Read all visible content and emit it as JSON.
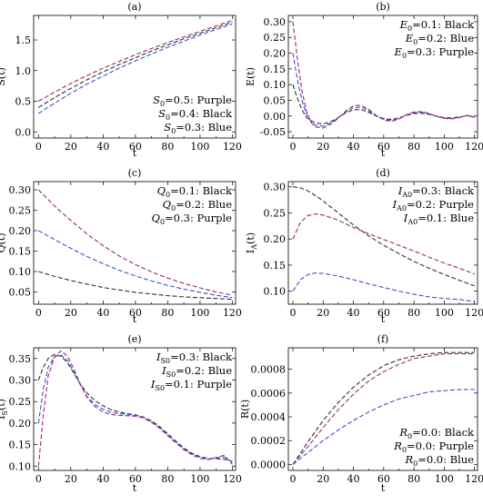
{
  "colors": {
    "Purple": "#9b2a6e",
    "Black": "#333333",
    "Blue": "#3b4fd6"
  },
  "chart_data": [
    {
      "type": "line",
      "title": "(a)",
      "xlabel": "t",
      "ylabel": "S(t)",
      "xlim": [
        -3,
        122
      ],
      "ylim": [
        -0.1,
        1.9
      ],
      "xticks": [
        0,
        20,
        40,
        60,
        80,
        100,
        120
      ],
      "xtick_labels": [
        "0",
        "20",
        "40",
        "60",
        "80",
        "100",
        "120"
      ],
      "yticks": [
        0.0,
        0.5,
        1.0,
        1.5
      ],
      "ytick_labels": [
        "0.0",
        "0.5",
        "1.0",
        "1.5"
      ],
      "legend_position": "bottom-right",
      "legend": [
        {
          "sym": "S",
          "sub": "0",
          "text": "=0.5:  Purple"
        },
        {
          "sym": "S",
          "sub": "0",
          "text": "=0.4:  Black"
        },
        {
          "sym": "S",
          "sub": "0",
          "text": "=0.3:  Blue"
        }
      ],
      "x": [
        0,
        10,
        20,
        30,
        40,
        50,
        60,
        70,
        80,
        90,
        100,
        110,
        120
      ],
      "series": [
        {
          "color": "Purple",
          "values": [
            0.5,
            0.65,
            0.79,
            0.92,
            1.04,
            1.15,
            1.26,
            1.36,
            1.46,
            1.55,
            1.64,
            1.73,
            1.82
          ]
        },
        {
          "color": "Black",
          "values": [
            0.4,
            0.56,
            0.71,
            0.85,
            0.98,
            1.1,
            1.21,
            1.32,
            1.42,
            1.52,
            1.61,
            1.7,
            1.79
          ]
        },
        {
          "color": "Blue",
          "values": [
            0.3,
            0.47,
            0.63,
            0.78,
            0.91,
            1.04,
            1.16,
            1.27,
            1.38,
            1.48,
            1.58,
            1.67,
            1.76
          ]
        }
      ]
    },
    {
      "type": "line",
      "title": "(b)",
      "xlabel": "t",
      "ylabel": "E(t)",
      "xlim": [
        -3,
        122
      ],
      "ylim": [
        -0.07,
        0.32
      ],
      "xticks": [
        0,
        20,
        40,
        60,
        80,
        100,
        120
      ],
      "xtick_labels": [
        "0",
        "20",
        "40",
        "60",
        "80",
        "100",
        "120"
      ],
      "yticks": [
        -0.05,
        0.0,
        0.05,
        0.1,
        0.15,
        0.2,
        0.25,
        0.3
      ],
      "ytick_labels": [
        "-0.05",
        "0.00",
        "0.05",
        "0.10",
        "0.15",
        "0.20",
        "0.25",
        "0.30"
      ],
      "legend_position": "top-right",
      "legend": [
        {
          "sym": "E",
          "sub": "0",
          "text": "=0.1:  Black"
        },
        {
          "sym": "E",
          "sub": "0",
          "text": "=0.2:  Blue"
        },
        {
          "sym": "E",
          "sub": "0",
          "text": "=0.3:  Purple"
        }
      ],
      "x": [
        0,
        3,
        6,
        9,
        12,
        15,
        20,
        25,
        30,
        35,
        40,
        45,
        50,
        55,
        60,
        65,
        70,
        75,
        80,
        85,
        90,
        95,
        100,
        105,
        110,
        115,
        120
      ],
      "series": [
        {
          "color": "Black",
          "values": [
            0.1,
            0.055,
            0.02,
            -0.005,
            -0.015,
            -0.022,
            -0.025,
            -0.018,
            -0.005,
            0.01,
            0.02,
            0.02,
            0.012,
            0.0,
            -0.008,
            -0.011,
            -0.006,
            0.002,
            0.008,
            0.009,
            0.005,
            -0.001,
            -0.005,
            -0.006,
            -0.003,
            0.001,
            -0.002
          ]
        },
        {
          "color": "Blue",
          "values": [
            0.2,
            0.115,
            0.05,
            0.005,
            -0.018,
            -0.03,
            -0.032,
            -0.022,
            -0.006,
            0.013,
            0.027,
            0.028,
            0.017,
            0.001,
            -0.01,
            -0.014,
            -0.008,
            0.003,
            0.011,
            0.012,
            0.007,
            -0.001,
            -0.007,
            -0.008,
            -0.004,
            0.002,
            -0.003
          ]
        },
        {
          "color": "Purple",
          "values": [
            0.3,
            0.18,
            0.08,
            0.015,
            -0.02,
            -0.035,
            -0.038,
            -0.026,
            -0.007,
            0.016,
            0.033,
            0.034,
            0.021,
            0.002,
            -0.012,
            -0.017,
            -0.01,
            0.004,
            0.013,
            0.014,
            0.008,
            -0.001,
            -0.008,
            -0.009,
            -0.005,
            0.002,
            -0.004
          ]
        }
      ]
    },
    {
      "type": "line",
      "title": "(c)",
      "xlabel": "t",
      "ylabel": "Q(t)",
      "xlim": [
        -3,
        122
      ],
      "ylim": [
        0.02,
        0.32
      ],
      "xticks": [
        0,
        20,
        40,
        60,
        80,
        100,
        120
      ],
      "xtick_labels": [
        "0",
        "20",
        "40",
        "60",
        "80",
        "100",
        "120"
      ],
      "yticks": [
        0.05,
        0.1,
        0.15,
        0.2,
        0.25,
        0.3
      ],
      "ytick_labels": [
        "0.05",
        "0.10",
        "0.15",
        "0.20",
        "0.25",
        "0.30"
      ],
      "legend_position": "top-right",
      "legend": [
        {
          "sym": "Q",
          "sub": "0",
          "text": "=0.1:  Black"
        },
        {
          "sym": "Q",
          "sub": "0",
          "text": "=0.2:  Blue"
        },
        {
          "sym": "Q",
          "sub": "0",
          "text": "=0.3:  Purple"
        }
      ],
      "x": [
        0,
        10,
        20,
        30,
        40,
        50,
        60,
        70,
        80,
        90,
        100,
        110,
        120
      ],
      "series": [
        {
          "color": "Purple",
          "values": [
            0.3,
            0.26,
            0.225,
            0.192,
            0.163,
            0.138,
            0.117,
            0.099,
            0.084,
            0.071,
            0.06,
            0.05,
            0.042
          ]
        },
        {
          "color": "Blue",
          "values": [
            0.2,
            0.178,
            0.157,
            0.137,
            0.119,
            0.103,
            0.089,
            0.077,
            0.066,
            0.057,
            0.049,
            0.042,
            0.036
          ]
        },
        {
          "color": "Black",
          "values": [
            0.1,
            0.088,
            0.078,
            0.069,
            0.061,
            0.055,
            0.049,
            0.045,
            0.041,
            0.038,
            0.036,
            0.034,
            0.032
          ]
        }
      ]
    },
    {
      "type": "line",
      "title": "(d)",
      "xlabel": "t",
      "ylabel": "I_A(t)",
      "xlim": [
        -3,
        122
      ],
      "ylim": [
        0.075,
        0.31
      ],
      "xticks": [
        0,
        20,
        40,
        60,
        80,
        100,
        120
      ],
      "xtick_labels": [
        "0",
        "20",
        "40",
        "60",
        "80",
        "100",
        "120"
      ],
      "yticks": [
        0.1,
        0.15,
        0.2,
        0.25,
        0.3
      ],
      "ytick_labels": [
        "0.10",
        "0.15",
        "0.20",
        "0.25",
        "0.30"
      ],
      "legend_position": "top-right",
      "legend": [
        {
          "sym": "I",
          "sub": "A0",
          "text": "=0.3:  Black"
        },
        {
          "sym": "I",
          "sub": "A0",
          "text": "=0.2:  Purple"
        },
        {
          "sym": "I",
          "sub": "A0",
          "text": "=0.1:  Blue"
        }
      ],
      "x": [
        0,
        5,
        10,
        15,
        20,
        30,
        40,
        50,
        60,
        70,
        80,
        90,
        100,
        110,
        120
      ],
      "series": [
        {
          "color": "Black",
          "values": [
            0.3,
            0.298,
            0.292,
            0.283,
            0.273,
            0.25,
            0.227,
            0.206,
            0.188,
            0.172,
            0.157,
            0.144,
            0.132,
            0.121,
            0.11
          ]
        },
        {
          "color": "Purple",
          "values": [
            0.2,
            0.232,
            0.245,
            0.248,
            0.246,
            0.236,
            0.222,
            0.21,
            0.199,
            0.188,
            0.177,
            0.165,
            0.154,
            0.144,
            0.133
          ]
        },
        {
          "color": "Blue",
          "values": [
            0.1,
            0.122,
            0.132,
            0.135,
            0.134,
            0.129,
            0.122,
            0.114,
            0.107,
            0.1,
            0.094,
            0.089,
            0.086,
            0.084,
            0.08
          ]
        }
      ]
    },
    {
      "type": "line",
      "title": "(e)",
      "xlabel": "t",
      "ylabel": "I_S(t)",
      "xlim": [
        -3,
        122
      ],
      "ylim": [
        0.09,
        0.375
      ],
      "xticks": [
        0,
        20,
        40,
        60,
        80,
        100,
        120
      ],
      "xtick_labels": [
        "0",
        "20",
        "40",
        "60",
        "80",
        "100",
        "120"
      ],
      "yticks": [
        0.1,
        0.15,
        0.2,
        0.25,
        0.3,
        0.35
      ],
      "ytick_labels": [
        "0.10",
        "0.15",
        "0.20",
        "0.25",
        "0.30",
        "0.35"
      ],
      "legend_position": "top-right",
      "legend": [
        {
          "sym": "I",
          "sub": "S0",
          "text": "=0.3:  Black"
        },
        {
          "sym": "I",
          "sub": "S0",
          "text": "=0.2:  Blue"
        },
        {
          "sym": "I",
          "sub": "S0",
          "text": "=0.1:  Purple"
        }
      ],
      "x": [
        0,
        3,
        6,
        10,
        14,
        18,
        22,
        26,
        30,
        35,
        40,
        45,
        50,
        55,
        60,
        65,
        70,
        75,
        80,
        85,
        90,
        95,
        100,
        105,
        110,
        115,
        120
      ],
      "series": [
        {
          "color": "Black",
          "values": [
            0.3,
            0.33,
            0.35,
            0.36,
            0.355,
            0.34,
            0.315,
            0.29,
            0.27,
            0.252,
            0.24,
            0.231,
            0.226,
            0.222,
            0.219,
            0.214,
            0.205,
            0.192,
            0.175,
            0.158,
            0.142,
            0.13,
            0.122,
            0.118,
            0.117,
            0.116,
            0.111
          ]
        },
        {
          "color": "Blue",
          "values": [
            0.2,
            0.28,
            0.33,
            0.355,
            0.358,
            0.345,
            0.318,
            0.288,
            0.262,
            0.243,
            0.232,
            0.225,
            0.222,
            0.22,
            0.218,
            0.213,
            0.203,
            0.19,
            0.173,
            0.156,
            0.14,
            0.128,
            0.121,
            0.117,
            0.119,
            0.121,
            0.109
          ]
        },
        {
          "color": "Purple",
          "values": [
            0.1,
            0.22,
            0.31,
            0.355,
            0.368,
            0.355,
            0.325,
            0.29,
            0.26,
            0.238,
            0.226,
            0.22,
            0.218,
            0.217,
            0.216,
            0.212,
            0.202,
            0.188,
            0.171,
            0.154,
            0.138,
            0.126,
            0.118,
            0.115,
            0.12,
            0.125,
            0.104
          ]
        }
      ]
    },
    {
      "type": "line",
      "title": "(f)",
      "xlabel": "t",
      "ylabel": "R(t)",
      "xlim": [
        -3,
        122
      ],
      "ylim": [
        -5e-05,
        0.00098
      ],
      "xticks": [
        0,
        20,
        40,
        60,
        80,
        100,
        120
      ],
      "xtick_labels": [
        "0",
        "20",
        "40",
        "60",
        "80",
        "100",
        "120"
      ],
      "yticks": [
        0.0,
        0.0002,
        0.0004,
        0.0006,
        0.0008
      ],
      "ytick_labels": [
        "0.0000",
        "0.0002",
        "0.0004",
        "0.0006",
        "0.0008"
      ],
      "legend_position": "bottom-right",
      "legend": [
        {
          "sym": "R",
          "sub": "0",
          "text": "=0.0:  Black"
        },
        {
          "sym": "R",
          "sub": "0",
          "text": "=0.0:  Purple"
        },
        {
          "sym": "R",
          "sub": "0",
          "text": "=0.0:  Blue"
        }
      ],
      "x": [
        0,
        10,
        20,
        30,
        40,
        50,
        60,
        70,
        80,
        90,
        100,
        110,
        120
      ],
      "series": [
        {
          "color": "Black",
          "values": [
            0.0,
            0.00019,
            0.00037,
            0.00052,
            0.00065,
            0.00075,
            0.00083,
            0.00088,
            0.00091,
            0.00093,
            0.00094,
            0.00094,
            0.00094
          ]
        },
        {
          "color": "Purple",
          "values": [
            0.0,
            0.00015,
            0.00031,
            0.00046,
            0.00059,
            0.0007,
            0.00078,
            0.00084,
            0.00089,
            0.00091,
            0.00093,
            0.00093,
            0.00093
          ]
        },
        {
          "color": "Blue",
          "values": [
            0.0,
            0.0001,
            0.0002,
            0.00029,
            0.00037,
            0.00044,
            0.0005,
            0.00055,
            0.00058,
            0.00061,
            0.00062,
            0.00063,
            0.00063
          ]
        }
      ]
    }
  ]
}
